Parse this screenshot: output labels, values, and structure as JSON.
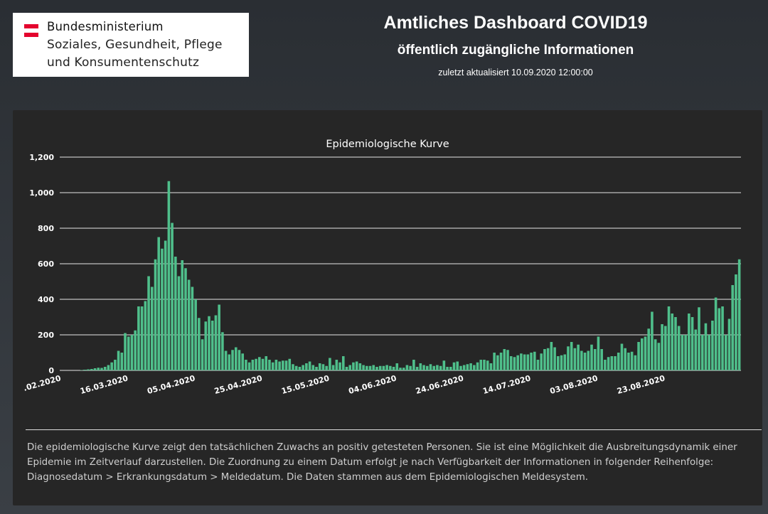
{
  "logo": {
    "line1": "Bundesministerium",
    "line2": "Soziales, Gesundheit, Pflege",
    "line3": "und Konsumentenschutz",
    "flag_colors": [
      "#e4032e",
      "#ffffff",
      "#e4032e"
    ]
  },
  "header": {
    "title": "Amtliches Dashboard COVID19",
    "subtitle": "öffentlich zugängliche Informationen",
    "updated": "zuletzt aktualisiert 10.09.2020 12:00:00"
  },
  "colors": {
    "bar": "#4fbf8b",
    "grid": "#e6e6e6",
    "text": "#ffffff"
  },
  "chart_data": {
    "type": "bar",
    "title": "Epidemiologische Kurve",
    "xlabel": "",
    "ylabel": "",
    "ylim": [
      0,
      1200
    ],
    "y_ticks": [
      0,
      200,
      400,
      600,
      800,
      1000,
      1200
    ],
    "y_tick_labels": [
      "0",
      "200",
      "400",
      "600",
      "800",
      "1,000",
      "1,200"
    ],
    "x_ticks": [
      {
        "label": ".02.2020",
        "index": 0
      },
      {
        "label": "16.03.2020",
        "index": 20
      },
      {
        "label": "05.04.2020",
        "index": 40
      },
      {
        "label": "25.04.2020",
        "index": 60
      },
      {
        "label": "15.05.2020",
        "index": 80
      },
      {
        "label": "04.06.2020",
        "index": 100
      },
      {
        "label": "24.06.2020",
        "index": 120
      },
      {
        "label": "14.07.2020",
        "index": 140
      },
      {
        "label": "03.08.2020",
        "index": 160
      },
      {
        "label": "23.08.2020",
        "index": 180
      }
    ],
    "values": [
      0,
      0,
      0,
      0,
      0,
      0,
      2,
      4,
      6,
      8,
      12,
      15,
      14,
      20,
      30,
      45,
      60,
      110,
      100,
      210,
      190,
      200,
      225,
      360,
      360,
      390,
      530,
      470,
      625,
      750,
      685,
      730,
      1065,
      830,
      640,
      530,
      620,
      575,
      510,
      470,
      400,
      295,
      175,
      275,
      305,
      280,
      310,
      370,
      215,
      110,
      90,
      115,
      130,
      115,
      95,
      60,
      45,
      60,
      65,
      75,
      65,
      80,
      60,
      45,
      60,
      50,
      55,
      55,
      65,
      35,
      25,
      20,
      30,
      40,
      50,
      30,
      20,
      40,
      35,
      25,
      70,
      30,
      60,
      45,
      80,
      20,
      30,
      45,
      50,
      40,
      30,
      25,
      25,
      30,
      20,
      25,
      25,
      30,
      25,
      20,
      40,
      15,
      15,
      30,
      25,
      60,
      20,
      40,
      30,
      25,
      35,
      25,
      30,
      25,
      55,
      20,
      20,
      45,
      50,
      25,
      30,
      35,
      40,
      30,
      45,
      60,
      60,
      55,
      40,
      100,
      85,
      100,
      120,
      115,
      80,
      75,
      85,
      95,
      90,
      90,
      100,
      105,
      60,
      95,
      120,
      125,
      160,
      130,
      80,
      85,
      90,
      135,
      160,
      125,
      145,
      110,
      100,
      110,
      145,
      120,
      190,
      120,
      60,
      75,
      80,
      80,
      100,
      150,
      125,
      100,
      105,
      85,
      160,
      180,
      190,
      235,
      330,
      175,
      155,
      260,
      250,
      360,
      320,
      300,
      250,
      200,
      200,
      320,
      300,
      230,
      355,
      200,
      265,
      200,
      280,
      410,
      350,
      360,
      200,
      290,
      480,
      540,
      625
    ]
  },
  "description": "Die epidemiologische Kurve zeigt den tatsächlichen Zuwachs an positiv getesteten Personen. Sie ist eine Möglichkeit die Ausbreitungsdynamik einer Epidemie im Zeitverlauf darzustellen. Die Zuordnung zu einem Datum erfolgt je nach Verfügbarkeit der Informationen in folgender Reihenfolge: Diagnosedatum > Erkrankungsdatum > Meldedatum. Die Daten stammen aus dem Epidemiologischen Meldesystem."
}
